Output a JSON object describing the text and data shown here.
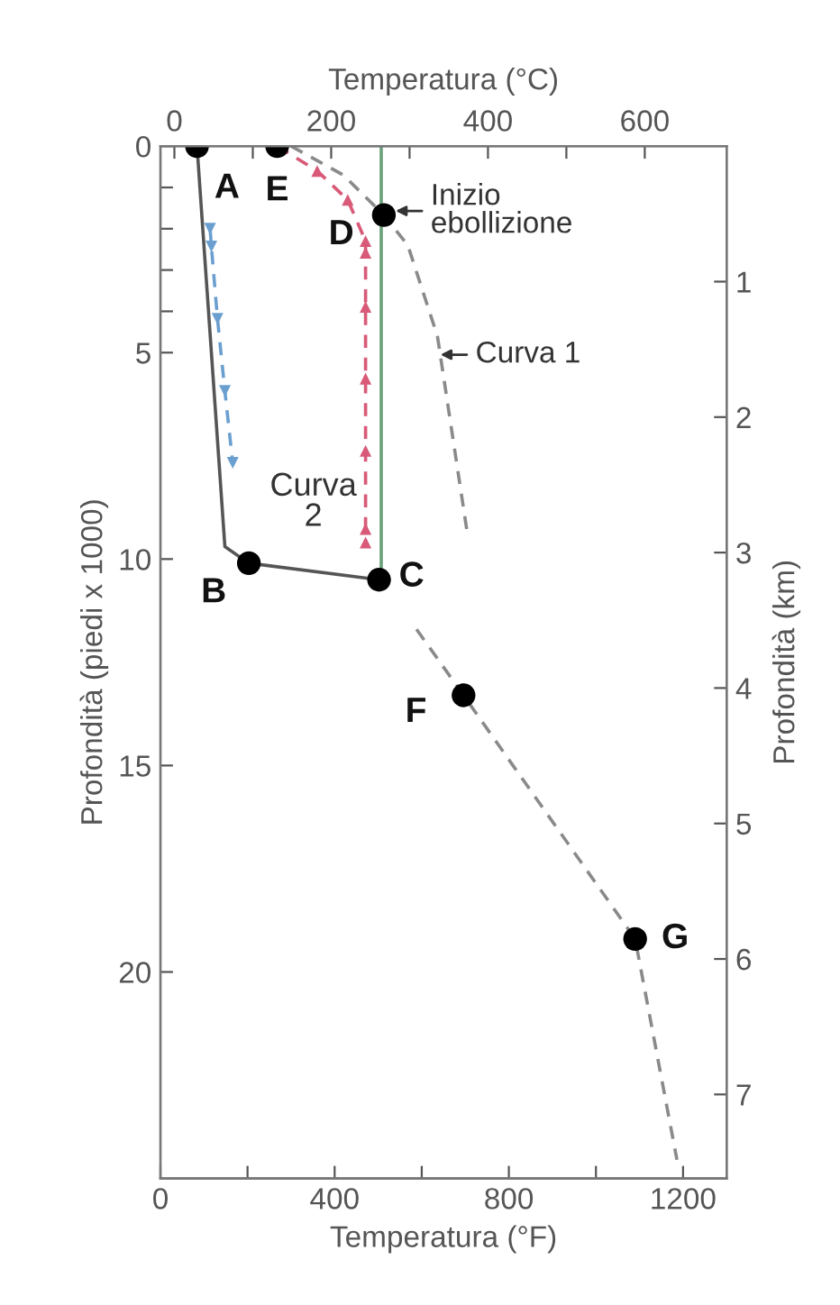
{
  "chart_data": {
    "type": "line",
    "xlabel": "Temperatura (°F)",
    "ylabel": "Profondità (piedi x 1000)",
    "x2label": "Temperatura (°C)",
    "y2label": "Profondità (km)",
    "xlim": [
      0,
      1300
    ],
    "xticks": [
      0,
      {
        "value": 200,
        "label": null
      },
      400,
      {
        "value": 600,
        "label": null
      },
      800,
      {
        "value": 1000,
        "label": null
      },
      1200
    ],
    "x2lim": [
      -17.8,
      704.4
    ],
    "x2ticks": [
      0,
      {
        "value": 100,
        "label": null
      },
      200,
      {
        "value": 300,
        "label": null
      },
      400,
      {
        "value": 500,
        "label": null
      },
      600
    ],
    "ylim": [
      25,
      0
    ],
    "yticks": [
      0,
      {
        "value": 1,
        "label": null
      },
      {
        "value": 2,
        "label": null
      },
      {
        "value": 3,
        "label": null
      },
      {
        "value": 4,
        "label": null
      },
      5,
      10,
      15,
      20
    ],
    "y2lim": [
      7.62,
      0
    ],
    "y2ticks": [
      1,
      2,
      3,
      4,
      5,
      6,
      7
    ],
    "grid": false,
    "legend": false,
    "series": [
      {
        "color": "#8a8a8a",
        "line_style": "dashed",
        "x": [
          300,
          420,
          513,
          568,
          636,
          705
        ],
        "values": [
          0,
          0.7,
          1.67,
          2.4,
          4.6,
          9.4
        ]
      },
      {
        "color": "#8a8a8a",
        "line_style": "dashed",
        "x": [
          588,
          696,
          1090,
          1186
        ],
        "values": [
          11.7,
          13.3,
          19.2,
          24.55
        ]
      },
      {
        "color": "#d85a78",
        "line_style": "dashed",
        "marker": "triangle",
        "x": [
          268,
          360,
          430,
          471,
          471,
          471,
          471,
          471,
          471,
          471
        ],
        "values": [
          0,
          0.6,
          1.3,
          2.3,
          2.58,
          3.89,
          5.63,
          7.38,
          9.27,
          9.6
        ]
      },
      {
        "color": "#6a9fd0",
        "line_style": "dashed",
        "marker": "triangle_down",
        "x": [
          114,
          117,
          131,
          148,
          166
        ],
        "values": [
          2.0,
          2.43,
          4.18,
          5.93,
          7.67
        ]
      },
      {
        "color": "#555555",
        "line_style": "solid",
        "x": [
          84,
          148,
          203,
          502
        ],
        "values": [
          0,
          9.7,
          10.1,
          10.5
        ]
      },
      {
        "color": "#6aa07a",
        "line_style": "solid",
        "x": [
          507,
          507
        ],
        "values": [
          10.5,
          0
        ]
      },
      {
        "type": "scatter",
        "color": "#000000",
        "marker": "circle",
        "x": [
          84,
          268,
          513,
          203,
          502,
          696,
          1090
        ],
        "values": [
          0,
          0,
          1.67,
          10.1,
          10.5,
          13.3,
          19.2
        ]
      }
    ],
    "annotations": [
      {
        "text": "A",
        "x": 84,
        "y": 0
      },
      {
        "text": "E",
        "x": 268,
        "y": 0
      },
      {
        "text": "D",
        "x": 513,
        "y": 1.67
      },
      {
        "text": "B",
        "x": 203,
        "y": 10.1
      },
      {
        "text": "C",
        "x": 502,
        "y": 10.5
      },
      {
        "text": "F",
        "x": 696,
        "y": 13.3
      },
      {
        "text": "G",
        "x": 1090,
        "y": 19.2
      },
      {
        "text": "Inizio\nebollizione",
        "x": 540,
        "y": 1.57
      },
      {
        "text": "Curva 1",
        "x": 643,
        "y": 5.05
      },
      "Curva\n2"
    ]
  }
}
